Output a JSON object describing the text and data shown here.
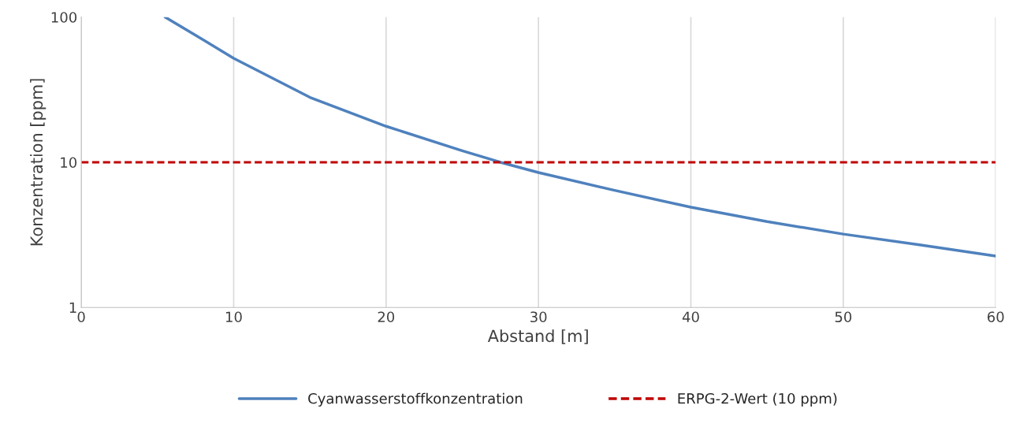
{
  "chart_data": {
    "type": "line",
    "xlabel": "Abstand [m]",
    "ylabel": "Konzentration [ppm]",
    "series": [
      {
        "name": "Cyanwasserstoffkonzentration",
        "color": "#4f81bd",
        "line_style": "solid",
        "x": [
          5.5,
          7.5,
          10,
          15,
          20,
          25,
          27.5,
          30,
          35,
          40,
          45,
          50,
          55,
          60
        ],
        "values": [
          100,
          75,
          52,
          28,
          17.7,
          12.0,
          10,
          8.5,
          6.4,
          4.9,
          3.9,
          3.2,
          2.7,
          2.26
        ]
      },
      {
        "name": "ERPG-2-Wert (10 ppm)",
        "color": "#c00000",
        "line_style": "dashed",
        "x": [
          0,
          60
        ],
        "values": [
          10,
          10
        ]
      }
    ],
    "xlim": [
      0,
      60
    ],
    "xticks": [
      0,
      10,
      20,
      30,
      40,
      50,
      60
    ],
    "ylim": [
      1,
      100
    ],
    "yticks": [
      1,
      10,
      100
    ],
    "log": "y",
    "grid": "x",
    "legend": "bottom",
    "marker": "none"
  }
}
